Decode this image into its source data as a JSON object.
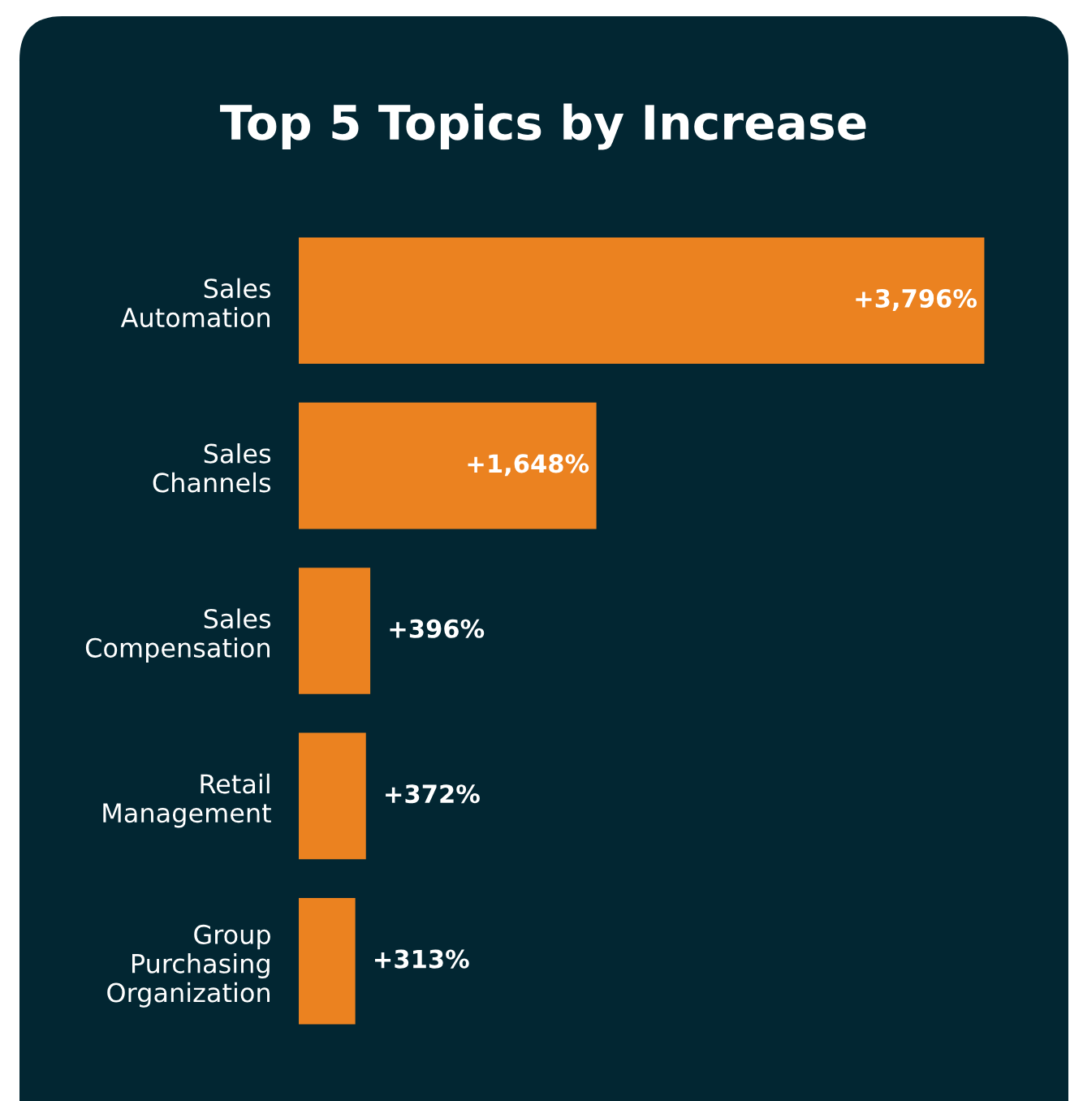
{
  "chart_data": {
    "type": "bar",
    "orientation": "horizontal",
    "title": "Top 5 Topics by Increase",
    "categories": [
      "Sales\nAutomation",
      "Sales\nChannels",
      "Sales\nCompensation",
      "Retail\nManagement",
      "Group\nPurchasing\nOrganization"
    ],
    "values": [
      3796,
      1648,
      396,
      372,
      313
    ],
    "value_labels": [
      "+3,796%",
      "+1,648%",
      "+396%",
      "+372%",
      "+313%"
    ],
    "color": "#eb8220",
    "grid": false,
    "legend": false
  }
}
